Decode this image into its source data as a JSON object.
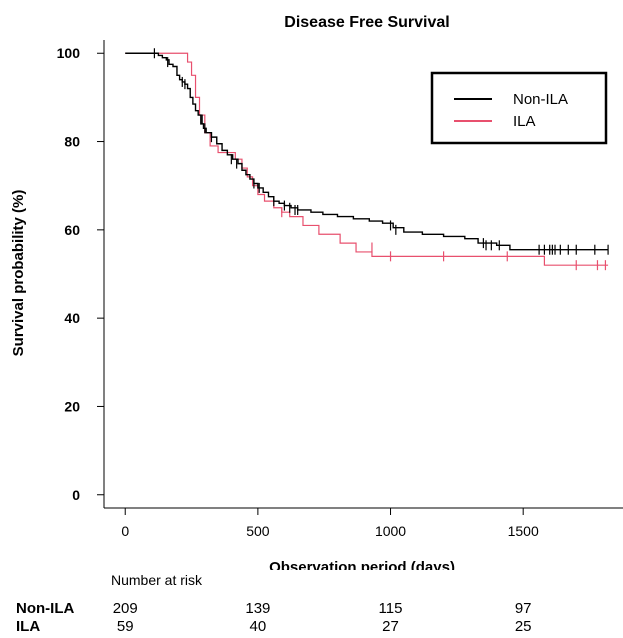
{
  "chart_data": {
    "type": "line",
    "title": "Disease Free Survival",
    "xlabel": "Observation period (days)",
    "ylabel": "Survival probability (%)",
    "xlim": [
      -80,
      1880
    ],
    "ylim": [
      -3,
      103
    ],
    "xticks": [
      0,
      500,
      1000,
      1500
    ],
    "yticks": [
      0,
      20,
      40,
      60,
      80,
      100
    ],
    "legend_position": "top-right",
    "series": [
      {
        "name": "Non-ILA",
        "color": "#000000",
        "points": [
          [
            0,
            100
          ],
          [
            110,
            100
          ],
          [
            125,
            99.5
          ],
          [
            140,
            99
          ],
          [
            155,
            98.5
          ],
          [
            165,
            97.5
          ],
          [
            180,
            97
          ],
          [
            195,
            95
          ],
          [
            205,
            94
          ],
          [
            215,
            93.5
          ],
          [
            225,
            93
          ],
          [
            235,
            92
          ],
          [
            245,
            90
          ],
          [
            255,
            88.5
          ],
          [
            265,
            87
          ],
          [
            275,
            86
          ],
          [
            285,
            84
          ],
          [
            295,
            83
          ],
          [
            305,
            82
          ],
          [
            325,
            81
          ],
          [
            345,
            79.5
          ],
          [
            365,
            78
          ],
          [
            385,
            77
          ],
          [
            405,
            76
          ],
          [
            425,
            75
          ],
          [
            440,
            73.5
          ],
          [
            455,
            72.5
          ],
          [
            470,
            71.5
          ],
          [
            485,
            70.5
          ],
          [
            500,
            69.5
          ],
          [
            520,
            68.5
          ],
          [
            540,
            67.5
          ],
          [
            560,
            66.5
          ],
          [
            580,
            66
          ],
          [
            600,
            65.5
          ],
          [
            625,
            65
          ],
          [
            650,
            64.5
          ],
          [
            700,
            64
          ],
          [
            745,
            63.5
          ],
          [
            800,
            63
          ],
          [
            860,
            62.5
          ],
          [
            920,
            62
          ],
          [
            970,
            61.5
          ],
          [
            1010,
            60.5
          ],
          [
            1050,
            59.5
          ],
          [
            1120,
            59
          ],
          [
            1200,
            58.5
          ],
          [
            1280,
            58
          ],
          [
            1330,
            57
          ],
          [
            1400,
            56.5
          ],
          [
            1450,
            55.5
          ],
          [
            1550,
            55.5
          ],
          [
            1820,
            55.5
          ]
        ],
        "censor_marks": [
          [
            110,
            100
          ],
          [
            160,
            98
          ],
          [
            215,
            93.5
          ],
          [
            225,
            93
          ],
          [
            290,
            85
          ],
          [
            300,
            83
          ],
          [
            325,
            81
          ],
          [
            400,
            76
          ],
          [
            420,
            75
          ],
          [
            485,
            70.5
          ],
          [
            505,
            69.5
          ],
          [
            560,
            66.5
          ],
          [
            600,
            65.5
          ],
          [
            620,
            65
          ],
          [
            640,
            64.5
          ],
          [
            650,
            64.5
          ],
          [
            1000,
            61
          ],
          [
            1020,
            60
          ],
          [
            1350,
            57
          ],
          [
            1360,
            56.5
          ],
          [
            1380,
            56.5
          ],
          [
            1410,
            56.5
          ],
          [
            1560,
            55.5
          ],
          [
            1580,
            55.5
          ],
          [
            1600,
            55.5
          ],
          [
            1610,
            55.5
          ],
          [
            1620,
            55.5
          ],
          [
            1640,
            55.5
          ],
          [
            1670,
            55.5
          ],
          [
            1700,
            55.5
          ],
          [
            1770,
            55.5
          ],
          [
            1820,
            55.5
          ]
        ]
      },
      {
        "name": "ILA",
        "color": "#e8506e",
        "points": [
          [
            0,
            100
          ],
          [
            220,
            100
          ],
          [
            235,
            98
          ],
          [
            250,
            95
          ],
          [
            265,
            90
          ],
          [
            280,
            86
          ],
          [
            300,
            82
          ],
          [
            320,
            79
          ],
          [
            350,
            77.5
          ],
          [
            400,
            77.5
          ],
          [
            415,
            76
          ],
          [
            440,
            74
          ],
          [
            460,
            72
          ],
          [
            480,
            70
          ],
          [
            500,
            68
          ],
          [
            525,
            66.5
          ],
          [
            560,
            65
          ],
          [
            590,
            64
          ],
          [
            620,
            63
          ],
          [
            650,
            63
          ],
          [
            670,
            61
          ],
          [
            700,
            61
          ],
          [
            730,
            59
          ],
          [
            790,
            59
          ],
          [
            810,
            57
          ],
          [
            860,
            57
          ],
          [
            870,
            55
          ],
          [
            920,
            55
          ],
          [
            930,
            54
          ],
          [
            1570,
            54
          ],
          [
            1580,
            52
          ],
          [
            1820,
            52
          ]
        ],
        "censor_marks": [
          [
            590,
            64
          ],
          [
            930,
            56
          ],
          [
            1000,
            54
          ],
          [
            1200,
            54
          ],
          [
            1440,
            54
          ],
          [
            1700,
            52
          ],
          [
            1780,
            52
          ],
          [
            1810,
            52
          ]
        ]
      }
    ]
  },
  "risk_table": {
    "title": "Number at risk",
    "columns": [
      0,
      500,
      1000,
      1500
    ],
    "rows": [
      {
        "label": "Non-ILA",
        "values": [
          "209",
          "139",
          "115",
          "97"
        ]
      },
      {
        "label": "ILA",
        "values": [
          "59",
          "40",
          "27",
          "25"
        ]
      }
    ]
  }
}
